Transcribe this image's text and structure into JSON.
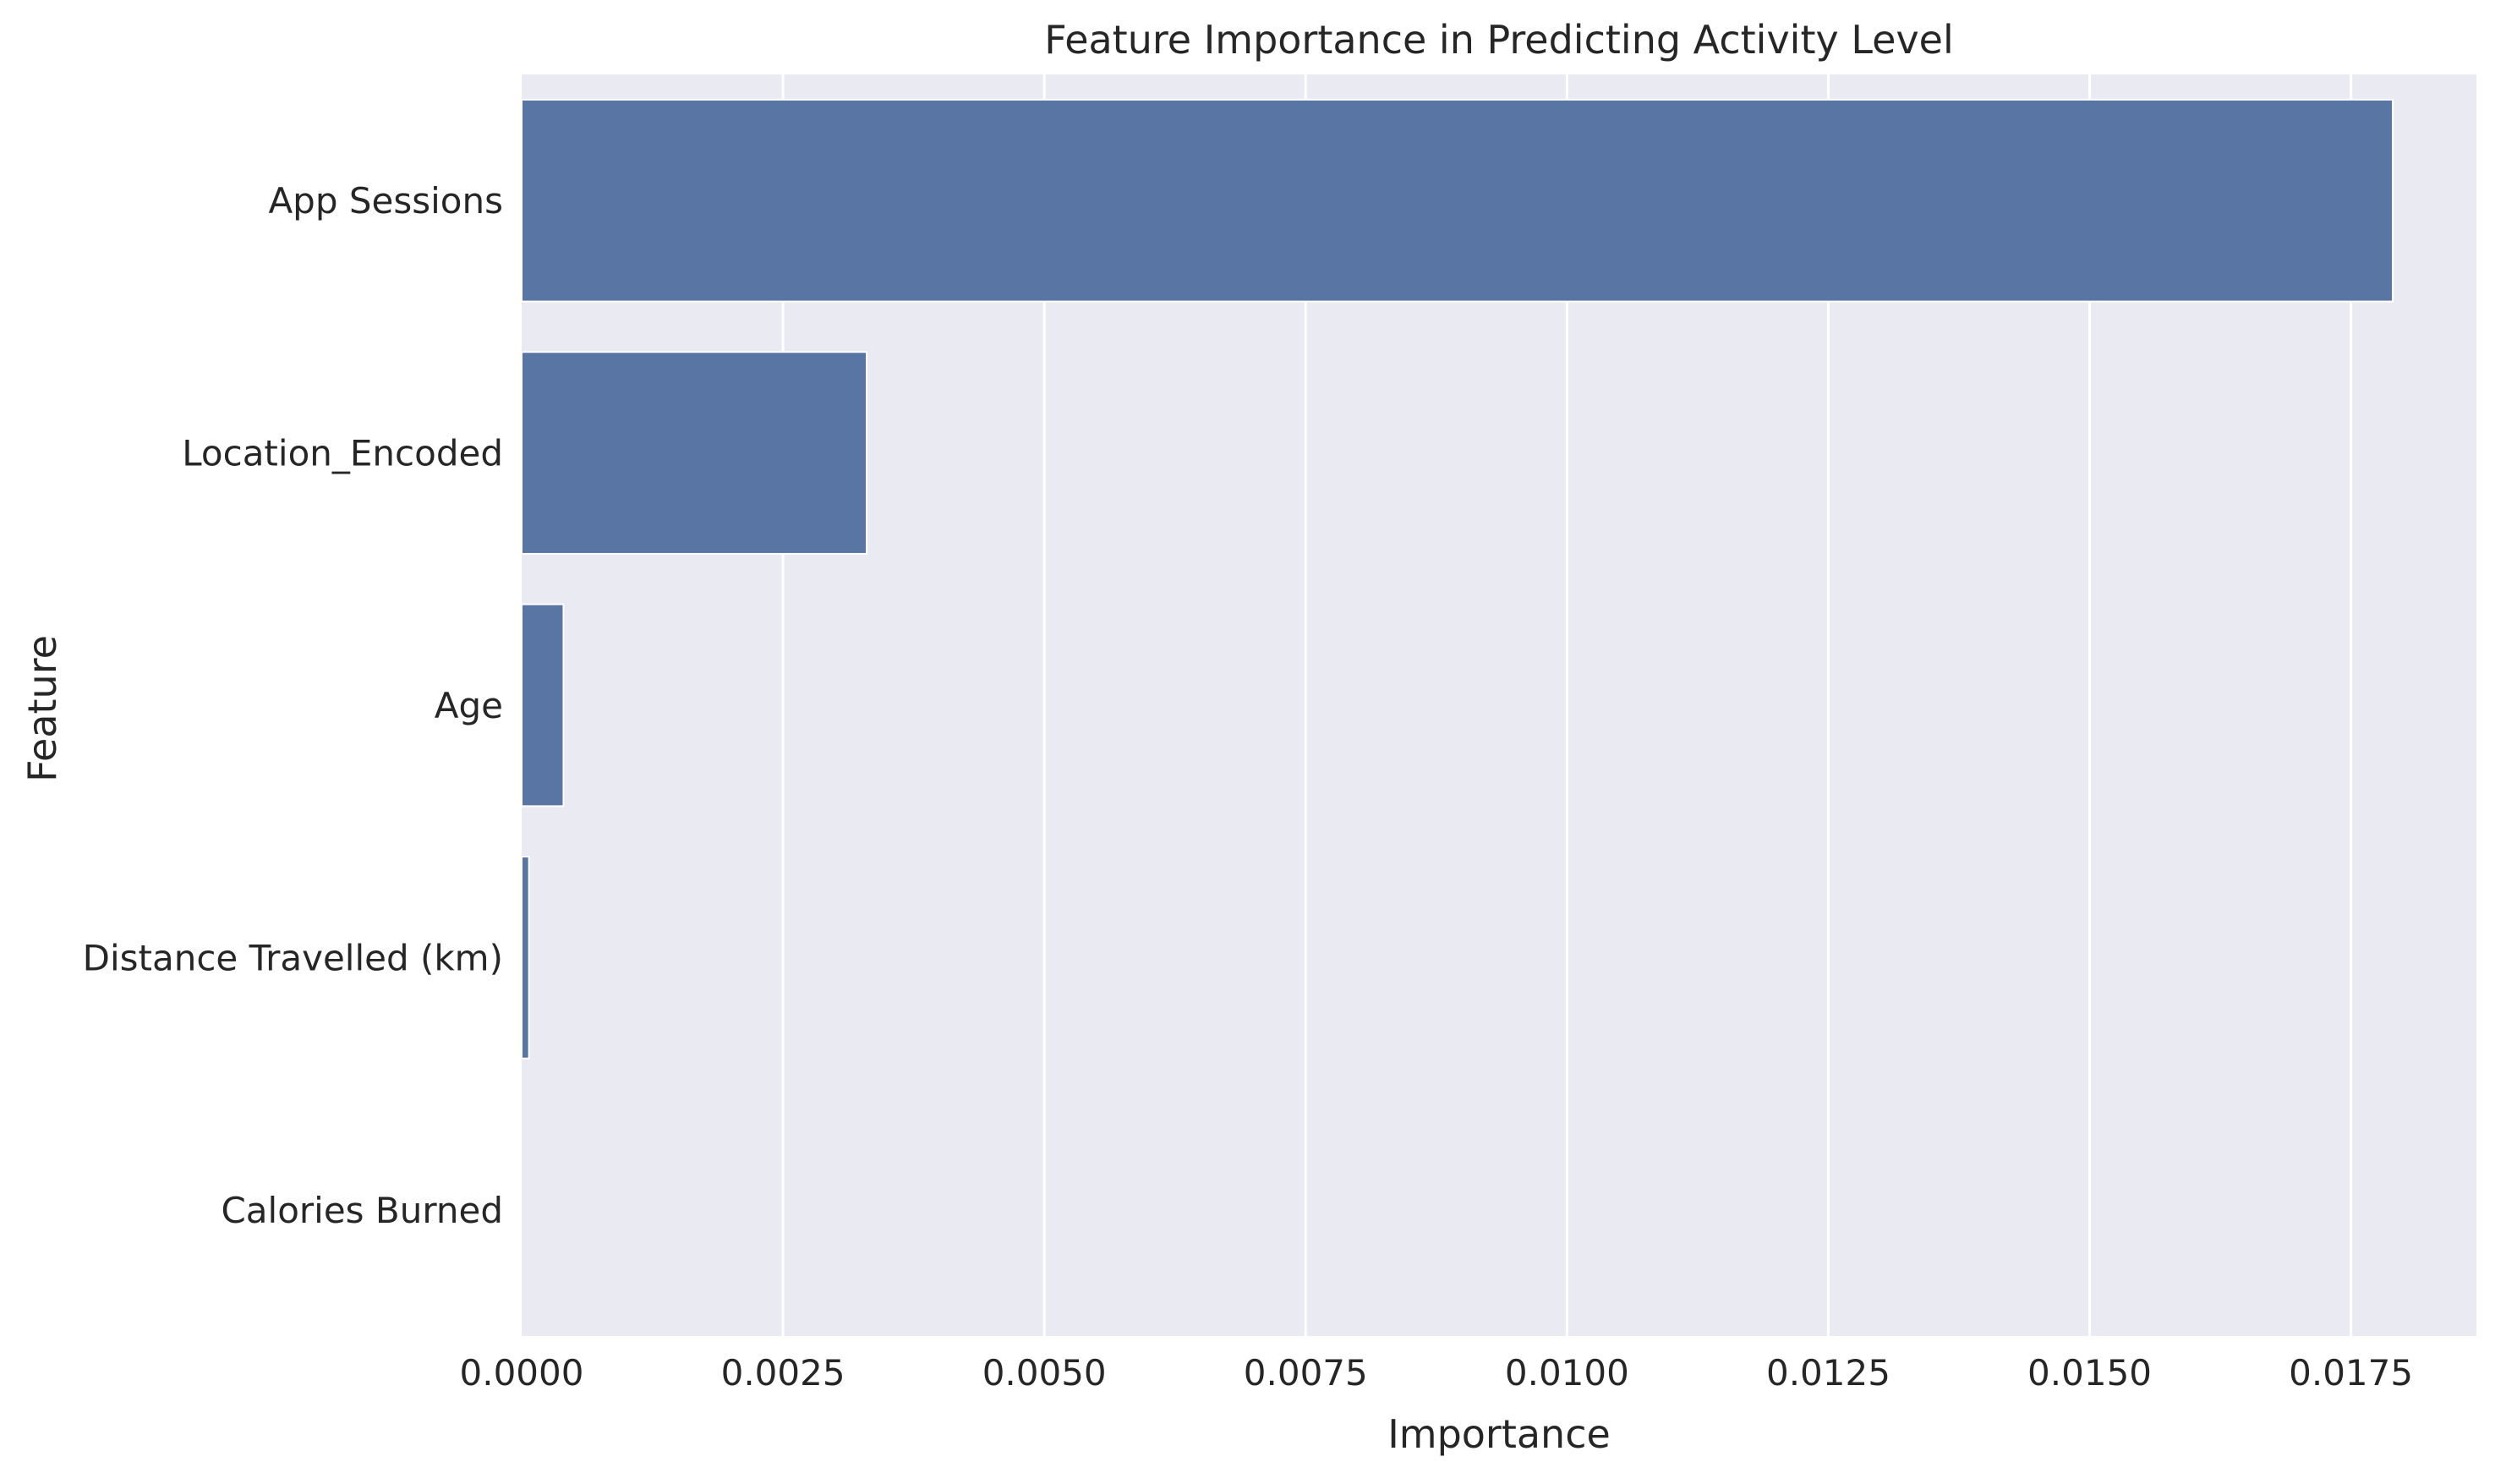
{
  "chart_data": {
    "type": "bar",
    "orientation": "horizontal",
    "title": "Feature Importance in Predicting Activity Level",
    "xlabel": "Importance",
    "ylabel": "Feature",
    "categories": [
      "App Sessions",
      "Location_Encoded",
      "Age",
      "Distance Travelled (km)",
      "Calories Burned"
    ],
    "values": [
      0.0179,
      0.0033,
      0.0004,
      7e-05,
      0.0
    ],
    "xlim": [
      0,
      0.0187
    ],
    "xticks": [
      "0.0000",
      "0.0025",
      "0.0050",
      "0.0075",
      "0.0100",
      "0.0125",
      "0.0150",
      "0.0175"
    ],
    "grid": true,
    "legend": "none",
    "colors": {
      "bar": "#5975a4",
      "plot_bg": "#eaeaf2",
      "grid": "#ffffff",
      "text": "#262626"
    }
  }
}
